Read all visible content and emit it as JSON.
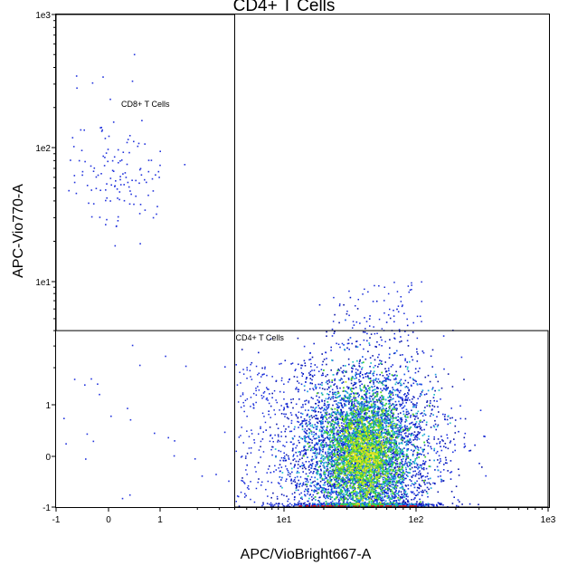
{
  "chart_data": {
    "type": "scatter",
    "title": "CD4+ T Cells",
    "xlabel": "APC/VioBright667-A",
    "ylabel": "APC-Vio770-A",
    "x_scale": "biexponential",
    "y_scale": "biexponential",
    "xlim": [
      -1,
      1000
    ],
    "ylim": [
      -1,
      1000
    ],
    "x_ticks": [
      {
        "value": -1,
        "label": "-1"
      },
      {
        "value": 0,
        "label": "0"
      },
      {
        "value": 1,
        "label": "1"
      },
      {
        "value": 10,
        "label": "1e1"
      },
      {
        "value": 100,
        "label": "1e2"
      },
      {
        "value": 1000,
        "label": "1e3"
      }
    ],
    "y_ticks": [
      {
        "value": -1,
        "label": "-1"
      },
      {
        "value": 0,
        "label": "0"
      },
      {
        "value": 1,
        "label": "1"
      },
      {
        "value": 10,
        "label": "1e1"
      },
      {
        "value": 100,
        "label": "1e2"
      },
      {
        "value": 1000,
        "label": "1e3"
      }
    ],
    "colormap": "density",
    "gates": [
      {
        "name": "CD8+ T Cells",
        "x_range": [
          -1,
          4
        ],
        "y_range": [
          4,
          1000
        ]
      },
      {
        "name": "CD4+ T Cells",
        "x_range": [
          4,
          1000
        ],
        "y_range": [
          -1,
          4
        ]
      }
    ],
    "populations": [
      {
        "gate": "CD8+ T Cells",
        "x_center": 0.2,
        "y_center": 55,
        "sparse": true
      },
      {
        "gate": "CD4+ T Cells",
        "x_center": 40,
        "y_center": 0.3,
        "dense": true
      }
    ],
    "grid": false,
    "legend": "none"
  }
}
